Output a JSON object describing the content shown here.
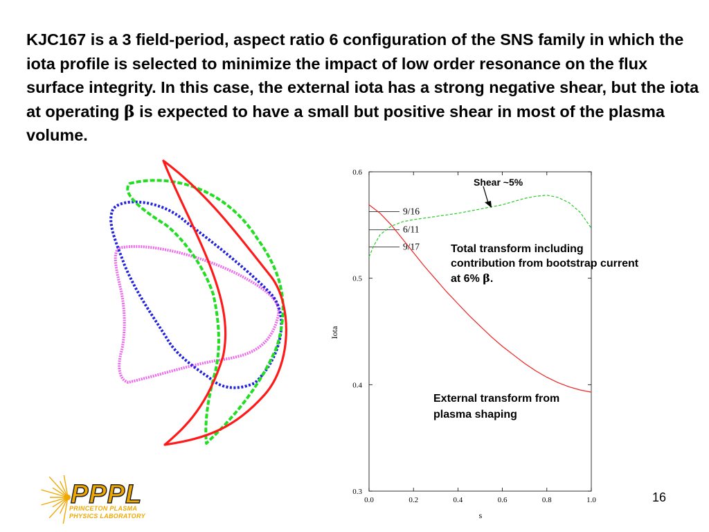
{
  "slide": {
    "text_before_beta": "KJC167 is a 3 field-period, aspect ratio 6 configuration of the SNS family in which the iota profile is selected to minimize the impact of low order resonance on the flux surface integrity. In this case, the external iota has a strong negative shear, but the iota at operating ",
    "beta_symbol": "β",
    "text_after_beta": " is expected to have a small but positive shear in most of the plasma volume.",
    "page_number": "16"
  },
  "flux_surfaces": {
    "colors": [
      "#ff1a1a",
      "#22dd22",
      "#2222dd",
      "#ee66ee"
    ],
    "line_styles": [
      "solid",
      "dashed",
      "dotted",
      "dotted"
    ]
  },
  "logo": {
    "name": "PPPL",
    "subtitle_line1": "PRINCETON PLASMA",
    "subtitle_line2": "PHYSICS LABORATORY",
    "color": "#f0a800"
  },
  "annotations": {
    "shear": "Shear ~5%",
    "total_transform": "Total transform including contribution from bootstrap current at 6% ",
    "total_transform_beta": "β",
    "total_transform_end": ".",
    "external_transform": "External transform from plasma shaping"
  },
  "chart_data": {
    "type": "line",
    "xlabel": "s",
    "ylabel": "Iota",
    "xlim": [
      0.0,
      1.0
    ],
    "ylim": [
      0.3,
      0.6
    ],
    "xticks": [
      "0.0",
      "0.2",
      "0.4",
      "0.6",
      "0.8",
      "1.0"
    ],
    "yticks": [
      "0.3",
      "0.4",
      "0.5",
      "0.6"
    ],
    "grid": false,
    "series": [
      {
        "color": "#ee2222",
        "style": "solid",
        "x": [
          0.0,
          0.05,
          0.1,
          0.15,
          0.2,
          0.25,
          0.3,
          0.35,
          0.4,
          0.45,
          0.5,
          0.55,
          0.6,
          0.65,
          0.7,
          0.75,
          0.8,
          0.85,
          0.9,
          0.95,
          1.0
        ],
        "y": [
          0.569,
          0.561,
          0.55,
          0.537,
          0.524,
          0.511,
          0.499,
          0.487,
          0.476,
          0.465,
          0.455,
          0.445,
          0.436,
          0.428,
          0.42,
          0.413,
          0.407,
          0.402,
          0.398,
          0.395,
          0.393
        ]
      },
      {
        "color": "#22cc22",
        "style": "dashed",
        "x": [
          0.0,
          0.02,
          0.05,
          0.1,
          0.15,
          0.2,
          0.3,
          0.4,
          0.5,
          0.6,
          0.7,
          0.75,
          0.8,
          0.85,
          0.9,
          0.95,
          1.0
        ],
        "y": [
          0.52,
          0.53,
          0.541,
          0.549,
          0.553,
          0.555,
          0.558,
          0.561,
          0.565,
          0.569,
          0.575,
          0.577,
          0.578,
          0.576,
          0.571,
          0.562,
          0.547
        ]
      }
    ],
    "resonances": [
      {
        "label": "9/16",
        "value": 0.5625
      },
      {
        "label": "6/11",
        "value": 0.5455
      },
      {
        "label": "9/17",
        "value": 0.5294
      }
    ]
  }
}
